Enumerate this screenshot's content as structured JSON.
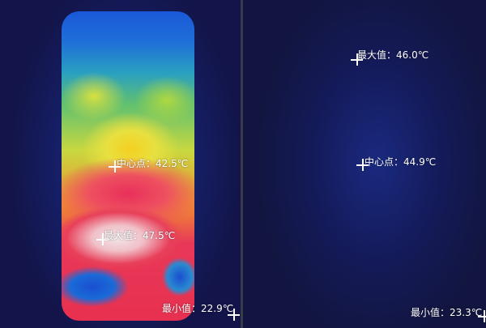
{
  "left_image": {
    "center_point": "中心点：42.5℃",
    "max_value": "最大值：47.5℃",
    "min_value": "最小值：22.9℃"
  },
  "right_image": {
    "max_value": "最大值：46.0℃",
    "center_point": "中心点：44.9℃",
    "min_value": "最小值：23.3℃"
  }
}
